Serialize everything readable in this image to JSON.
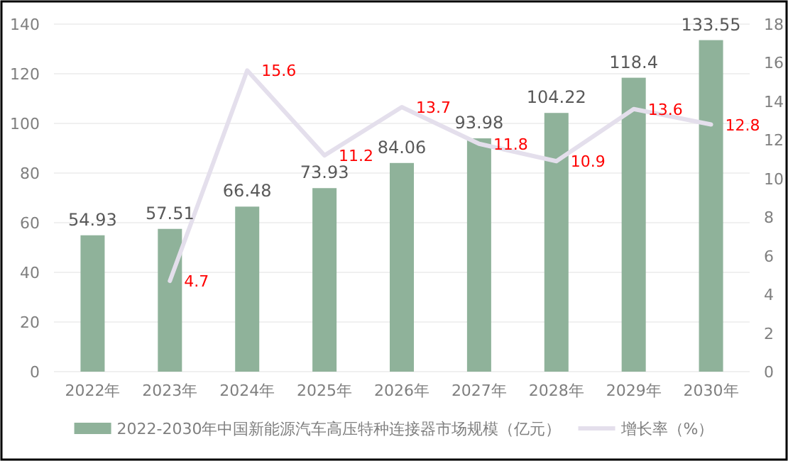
{
  "chart_data": {
    "type": "bar",
    "categories": [
      "2022年",
      "2023年",
      "2024年",
      "2025年",
      "2026年",
      "2027年",
      "2028年",
      "2029年",
      "2030年"
    ],
    "series": [
      {
        "name": "2022-2030年中国新能源汽车高压特种连接器市场规模（亿元）",
        "color": "#8fb29a",
        "values": [
          54.93,
          57.51,
          66.48,
          73.93,
          84.06,
          93.98,
          104.22,
          118.4,
          133.55
        ]
      },
      {
        "name": "增长率（%）",
        "type": "line",
        "axis": "y2",
        "color": "#e4dfec",
        "values": [
          null,
          4.7,
          15.6,
          11.2,
          13.7,
          11.8,
          10.9,
          13.6,
          12.8
        ]
      }
    ],
    "ylim": [
      0,
      140
    ],
    "yticks": [
      0,
      20,
      40,
      60,
      80,
      100,
      120,
      140
    ],
    "y2lim": [
      0,
      18
    ],
    "y2ticks": [
      0,
      2,
      4,
      6,
      8,
      10,
      12,
      14,
      16,
      18
    ],
    "grid": "y",
    "legend": "bottom",
    "data_labels": true,
    "marker": "none"
  }
}
